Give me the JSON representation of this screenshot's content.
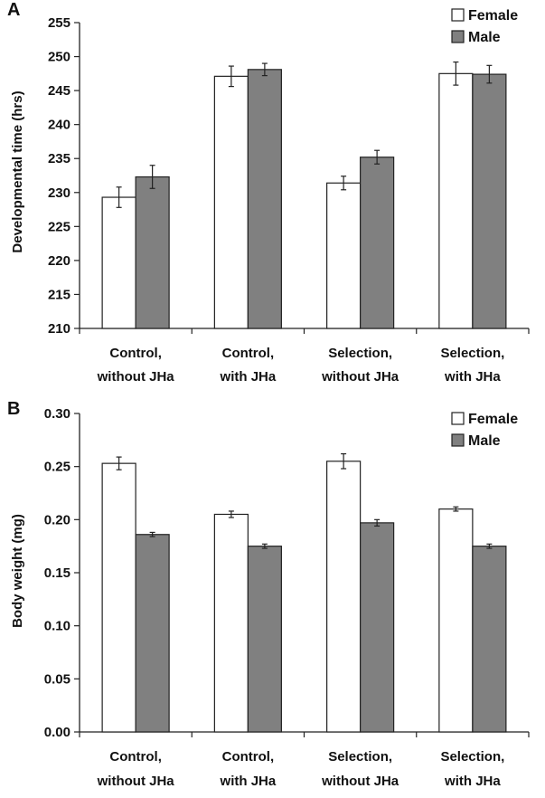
{
  "chart_data": [
    {
      "type": "bar",
      "panel_label": "A",
      "categories": [
        [
          "Control,",
          "without JHa"
        ],
        [
          "Control,",
          "with JHa"
        ],
        [
          "Selection,",
          "without JHa"
        ],
        [
          "Selection,",
          "with JHa"
        ]
      ],
      "series": [
        {
          "name": "Female",
          "color": "#ffffff",
          "values": [
            229.3,
            247.1,
            231.4,
            247.5
          ],
          "errors": [
            1.5,
            1.5,
            1.0,
            1.7
          ]
        },
        {
          "name": "Male",
          "color": "#808080",
          "values": [
            232.3,
            248.1,
            235.2,
            247.4
          ],
          "errors": [
            1.7,
            0.9,
            1.0,
            1.3
          ]
        }
      ],
      "ylabel": "Developmental time (hrs)",
      "xlabel": "",
      "ylim": [
        210,
        255
      ],
      "yticks": [
        "210",
        "215",
        "220",
        "225",
        "230",
        "235",
        "240",
        "245",
        "250",
        "255"
      ],
      "legend": "top-right",
      "grid": false
    },
    {
      "type": "bar",
      "panel_label": "B",
      "categories": [
        [
          "Control,",
          "without JHa"
        ],
        [
          "Control,",
          "with JHa"
        ],
        [
          "Selection,",
          "without JHa"
        ],
        [
          "Selection,",
          "with JHa"
        ]
      ],
      "series": [
        {
          "name": "Female",
          "color": "#ffffff",
          "values": [
            0.253,
            0.205,
            0.255,
            0.21
          ],
          "errors": [
            0.006,
            0.003,
            0.007,
            0.002
          ]
        },
        {
          "name": "Male",
          "color": "#808080",
          "values": [
            0.186,
            0.175,
            0.197,
            0.175
          ],
          "errors": [
            0.002,
            0.002,
            0.003,
            0.002
          ]
        }
      ],
      "ylabel": "Body weight (mg)",
      "xlabel": "",
      "ylim": [
        0,
        0.3
      ],
      "yticks": [
        "0.00",
        "0.05",
        "0.10",
        "0.15",
        "0.20",
        "0.25",
        "0.30"
      ],
      "legend": "top-right",
      "grid": false
    }
  ]
}
